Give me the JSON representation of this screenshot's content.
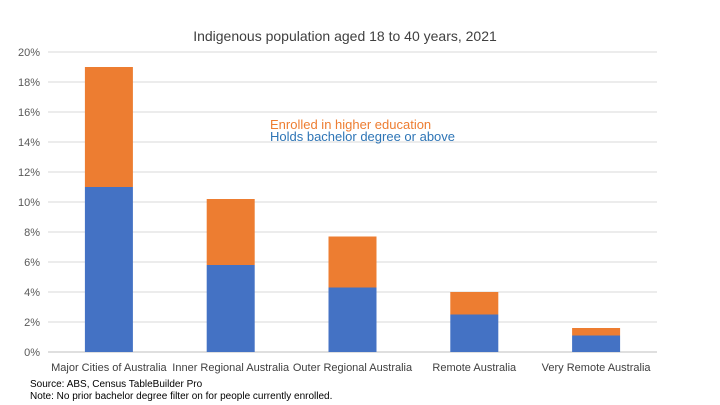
{
  "chart_data": {
    "type": "bar",
    "stacked": true,
    "title": "Indigenous population aged 18 to 40 years, 2021",
    "categories": [
      "Major Cities of Australia",
      "Inner Regional Australia",
      "Outer Regional Australia",
      "Remote Australia",
      "Very Remote Australia"
    ],
    "series": [
      {
        "name": "Holds bachelor degree or above",
        "values": [
          11.0,
          5.8,
          4.3,
          2.5,
          1.1
        ],
        "color": "#4472C4"
      },
      {
        "name": "Enrolled in higher education",
        "values": [
          8.0,
          4.4,
          3.4,
          1.5,
          0.5
        ],
        "color": "#ED7D31"
      }
    ],
    "ylim": [
      0,
      20
    ],
    "yticks": [
      "0%",
      "2%",
      "4%",
      "6%",
      "8%",
      "10%",
      "12%",
      "14%",
      "16%",
      "18%",
      "20%"
    ],
    "grid": true,
    "legend_placement": "inside-center",
    "legend": [
      {
        "text": "Enrolled in higher education",
        "color": "#ED7D31"
      },
      {
        "text": "Holds bachelor degree or above",
        "color": "#2E75B6"
      }
    ]
  },
  "notes": {
    "source": "Source: ABS, Census TableBuilder Pro",
    "note": "Note: No prior bachelor degree filter on for people currently enrolled."
  }
}
